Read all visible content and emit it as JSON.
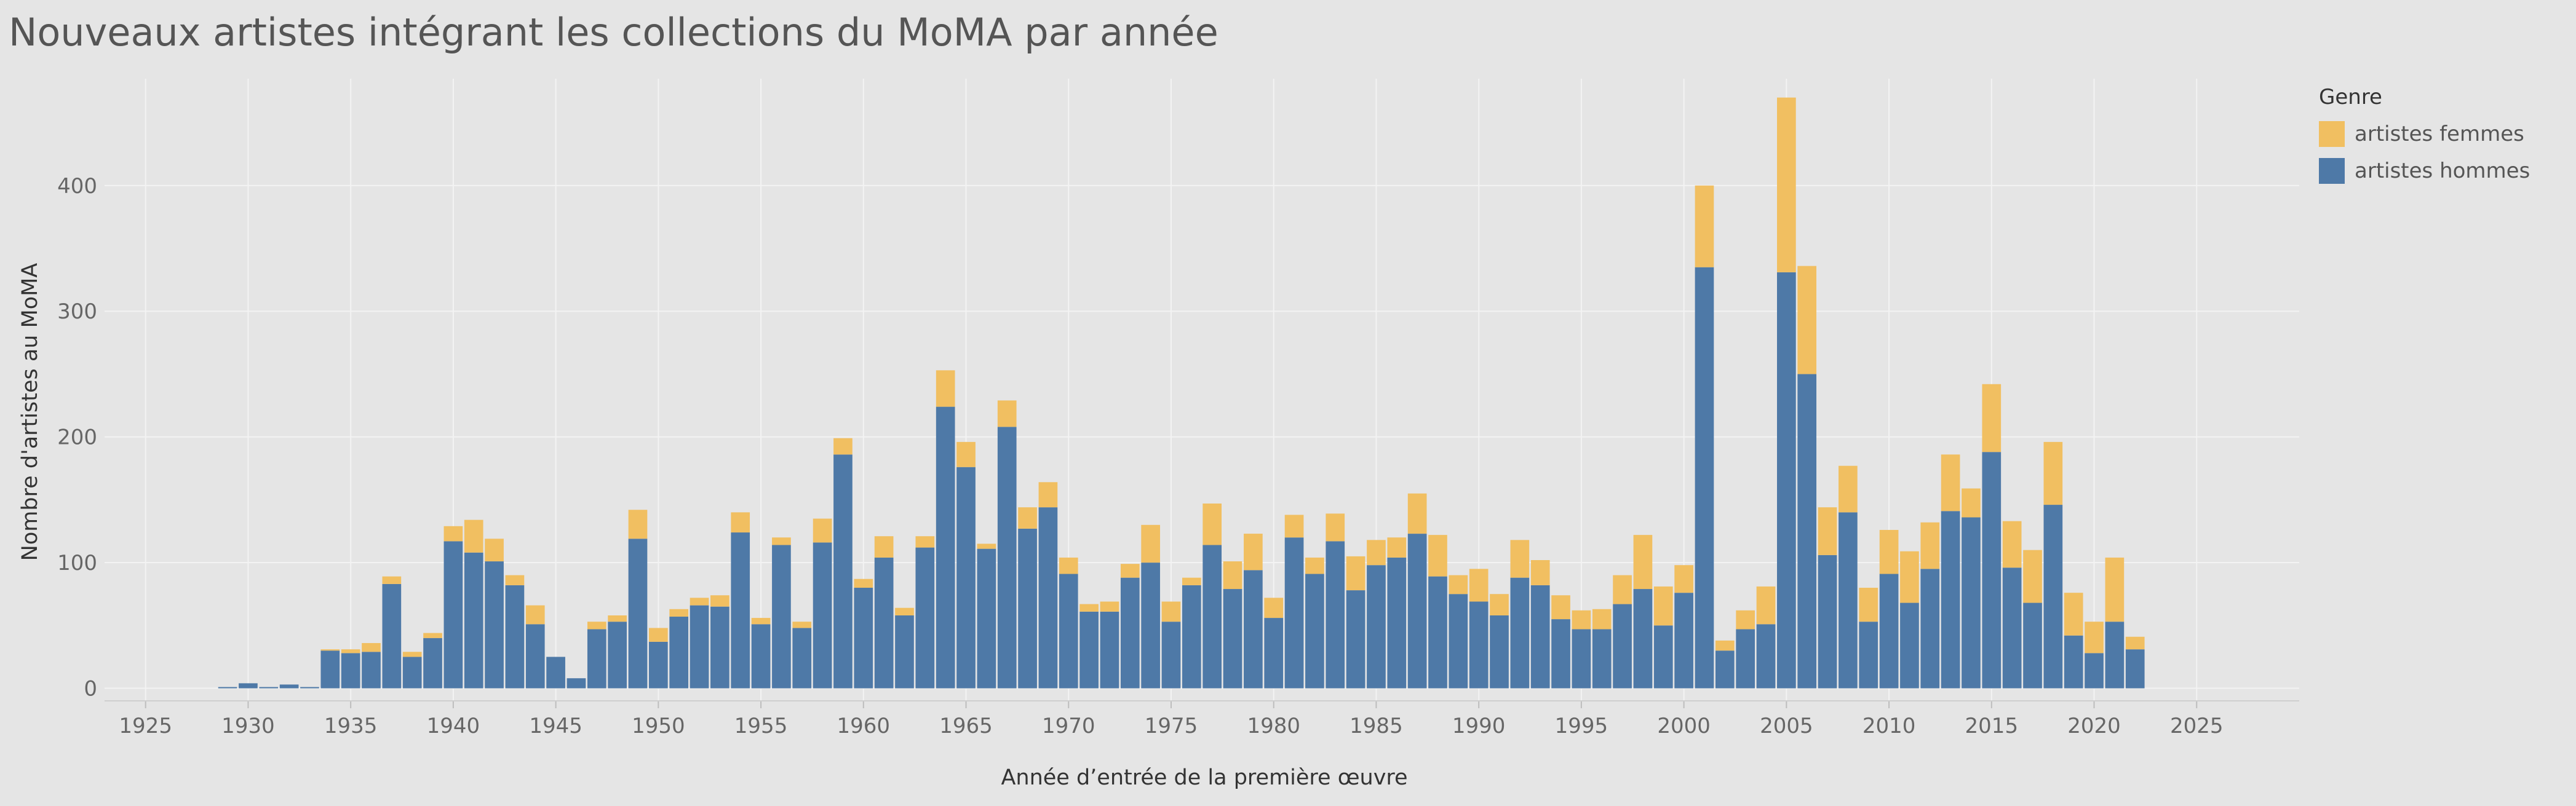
{
  "chart_data": {
    "type": "bar",
    "stacked": true,
    "title": "Nouveaux artistes intégrant les collections du MoMA par année",
    "xlabel": "Année d’entrée de la première œuvre",
    "ylabel": "Nombre d'artistes au MoMA",
    "xlim": [
      1923,
      2030
    ],
    "ylim": [
      -10,
      485
    ],
    "x_ticks": [
      1925,
      1930,
      1935,
      1940,
      1945,
      1950,
      1955,
      1960,
      1965,
      1970,
      1975,
      1980,
      1985,
      1990,
      1995,
      2000,
      2005,
      2010,
      2015,
      2020,
      2025
    ],
    "y_ticks": [
      0,
      100,
      200,
      300,
      400
    ],
    "grid": true,
    "legend_title": "Genre",
    "legend_position": "top-right",
    "years": [
      1929,
      1930,
      1931,
      1932,
      1933,
      1934,
      1935,
      1936,
      1937,
      1938,
      1939,
      1940,
      1941,
      1942,
      1943,
      1944,
      1945,
      1946,
      1947,
      1948,
      1949,
      1950,
      1951,
      1952,
      1953,
      1954,
      1955,
      1956,
      1957,
      1958,
      1959,
      1960,
      1961,
      1962,
      1963,
      1964,
      1965,
      1966,
      1967,
      1968,
      1969,
      1970,
      1971,
      1972,
      1973,
      1974,
      1975,
      1976,
      1977,
      1978,
      1979,
      1980,
      1981,
      1982,
      1983,
      1984,
      1985,
      1986,
      1987,
      1988,
      1989,
      1990,
      1991,
      1992,
      1993,
      1994,
      1995,
      1996,
      1997,
      1998,
      1999,
      2000,
      2001,
      2002,
      2003,
      2004,
      2005,
      2006,
      2007,
      2008,
      2009,
      2010,
      2011,
      2012,
      2013,
      2014,
      2015,
      2016,
      2017,
      2018,
      2019,
      2020,
      2021,
      2022
    ],
    "series": [
      {
        "name": "artistes hommes",
        "color": "#4e79a7",
        "values": [
          1,
          4,
          1,
          3,
          1,
          30,
          28,
          29,
          83,
          25,
          40,
          117,
          108,
          101,
          82,
          51,
          25,
          8,
          47,
          53,
          119,
          37,
          57,
          66,
          65,
          124,
          51,
          114,
          48,
          116,
          186,
          80,
          104,
          58,
          112,
          224,
          176,
          111,
          208,
          127,
          144,
          91,
          61,
          61,
          88,
          100,
          53,
          82,
          114,
          79,
          94,
          56,
          120,
          91,
          117,
          78,
          98,
          104,
          123,
          89,
          75,
          69,
          58,
          88,
          82,
          55,
          47,
          47,
          67,
          79,
          50,
          76,
          335,
          30,
          47,
          51,
          331,
          250,
          106,
          140,
          53,
          91,
          68,
          95,
          141,
          136,
          188,
          96,
          68,
          146,
          42,
          28,
          53,
          31
        ]
      },
      {
        "name": "artistes femmes",
        "color": "#f1bf61",
        "values": [
          0,
          0,
          0,
          0,
          0,
          1,
          3,
          7,
          6,
          4,
          4,
          12,
          26,
          18,
          8,
          15,
          0,
          0,
          6,
          5,
          23,
          11,
          6,
          6,
          9,
          16,
          5,
          6,
          5,
          19,
          13,
          7,
          17,
          6,
          9,
          29,
          20,
          4,
          21,
          17,
          20,
          13,
          6,
          8,
          11,
          30,
          16,
          6,
          33,
          22,
          29,
          16,
          18,
          13,
          22,
          27,
          20,
          16,
          32,
          33,
          15,
          26,
          17,
          30,
          20,
          19,
          15,
          16,
          23,
          43,
          31,
          22,
          65,
          8,
          15,
          30,
          139,
          86,
          38,
          37,
          27,
          35,
          41,
          37,
          45,
          23,
          54,
          37,
          42,
          50,
          34,
          25,
          51,
          10
        ]
      }
    ]
  }
}
